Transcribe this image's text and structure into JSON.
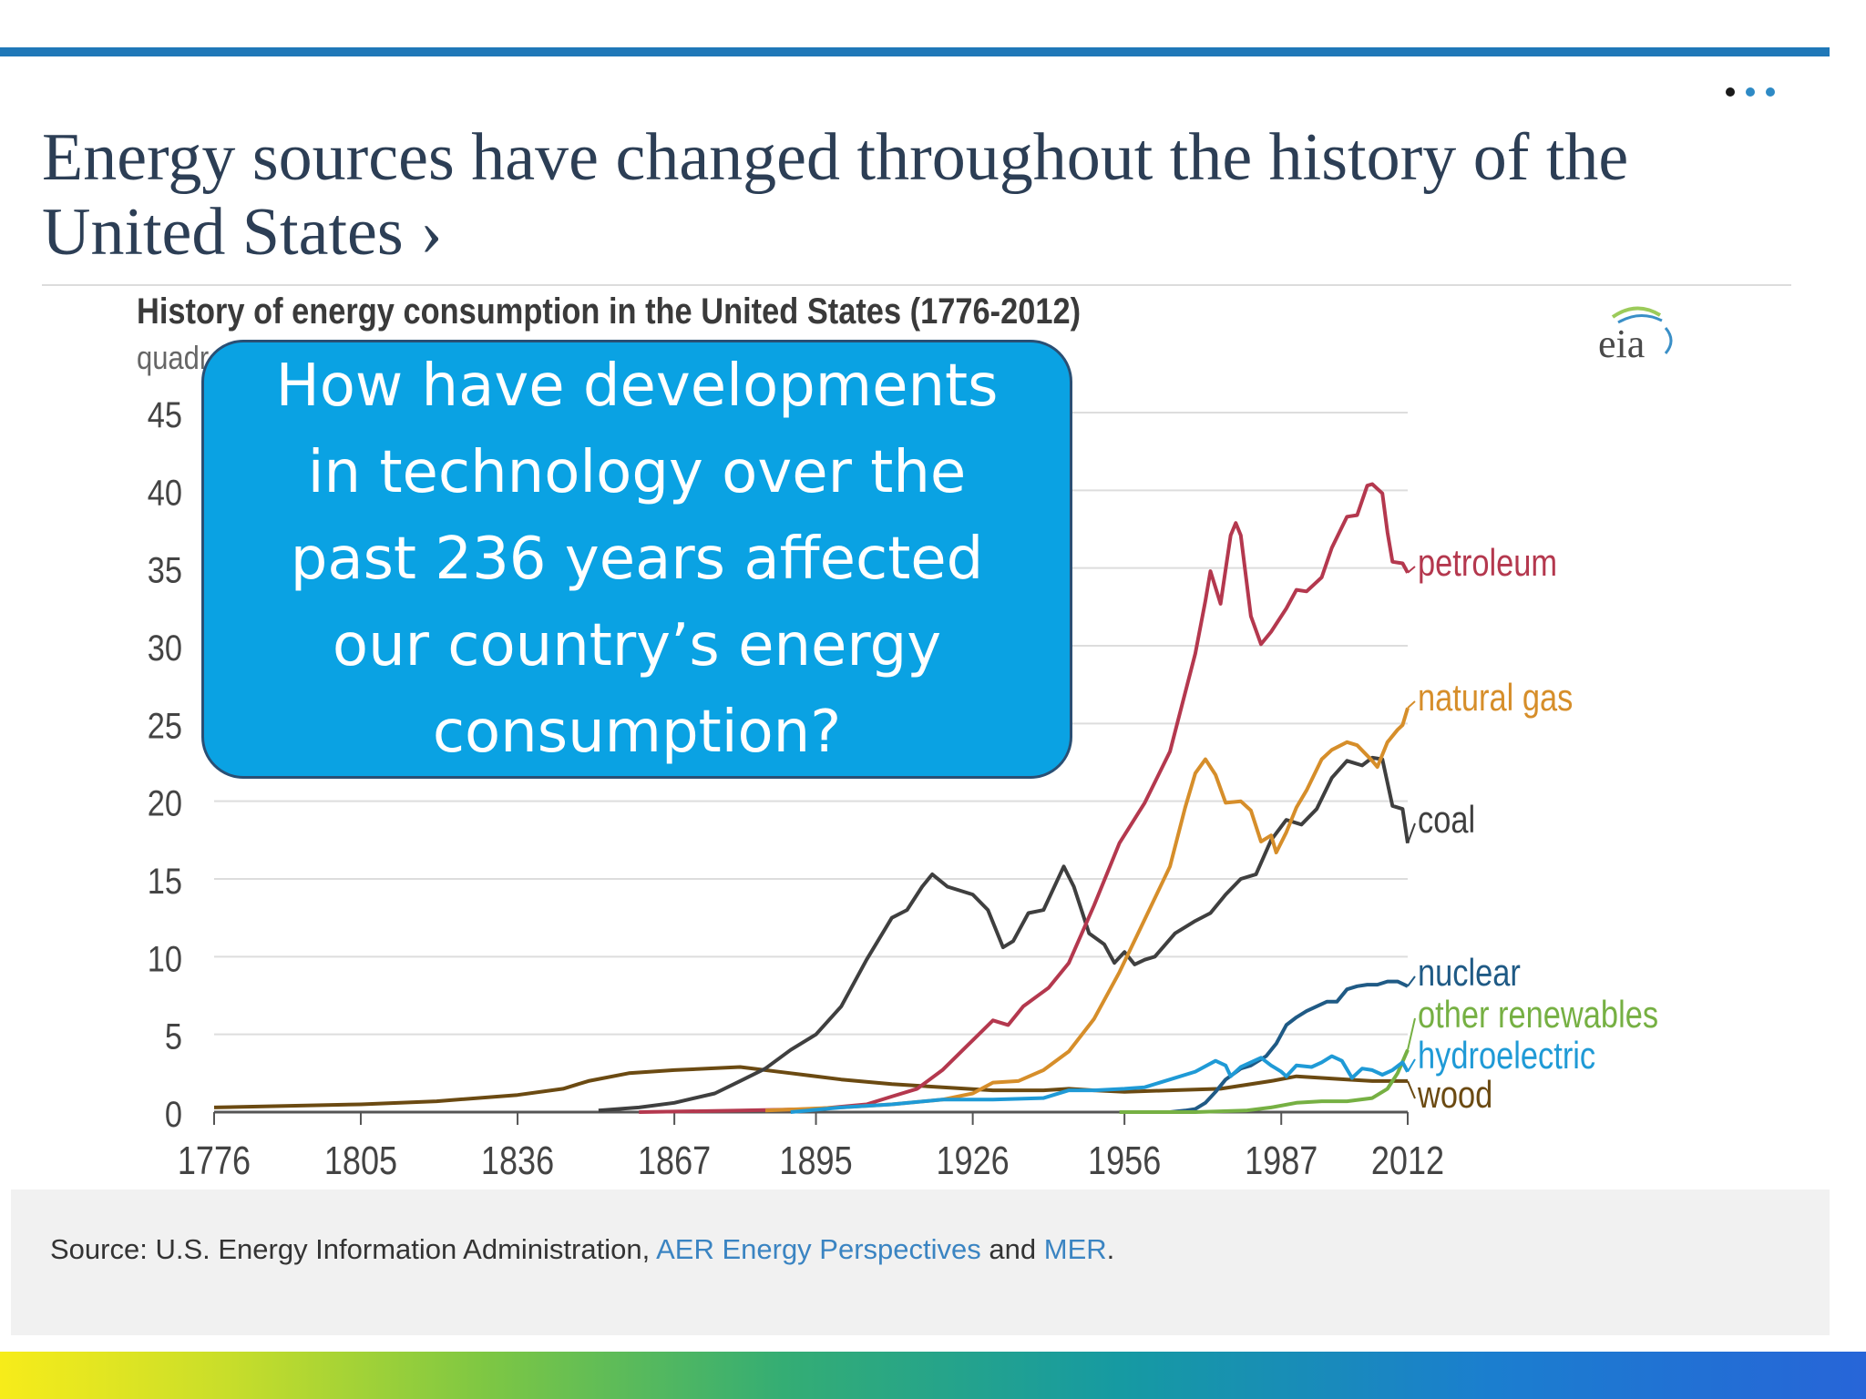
{
  "slide": {
    "heading": "Energy sources have changed throughout the history of the United States ›",
    "page_dots": 3
  },
  "callout": {
    "text": "How have developments in technology over the past 236 years affected our country’s energy consumption?"
  },
  "source": {
    "prefix": "Source: U.S. Energy Information Administration,",
    "link1": "AER Energy Perspectives",
    "and": "and",
    "link2": "MER",
    "end": "."
  },
  "logo": {
    "text": "eia"
  },
  "chart_data": {
    "type": "line",
    "title": "History of energy consumption in the United States (1776-2012)",
    "ylabel": "quadr",
    "xlim": [
      1776,
      2012
    ],
    "ylim": [
      0,
      45
    ],
    "x_ticks": [
      1776,
      1805,
      1836,
      1867,
      1895,
      1926,
      1956,
      1987,
      2012
    ],
    "y_ticks": [
      0,
      5,
      10,
      15,
      20,
      25,
      30,
      35,
      40,
      45
    ],
    "grid": true,
    "series": [
      {
        "name": "wood",
        "color": "#6b4a12",
        "points": [
          [
            1776,
            0.3
          ],
          [
            1790,
            0.4
          ],
          [
            1805,
            0.5
          ],
          [
            1820,
            0.7
          ],
          [
            1836,
            1.1
          ],
          [
            1845,
            1.5
          ],
          [
            1850,
            2.0
          ],
          [
            1858,
            2.5
          ],
          [
            1867,
            2.7
          ],
          [
            1880,
            2.9
          ],
          [
            1890,
            2.5
          ],
          [
            1900,
            2.1
          ],
          [
            1910,
            1.8
          ],
          [
            1920,
            1.6
          ],
          [
            1930,
            1.4
          ],
          [
            1940,
            1.4
          ],
          [
            1945,
            1.5
          ],
          [
            1950,
            1.4
          ],
          [
            1956,
            1.3
          ],
          [
            1965,
            1.4
          ],
          [
            1975,
            1.5
          ],
          [
            1985,
            2.0
          ],
          [
            1990,
            2.3
          ],
          [
            2000,
            2.1
          ],
          [
            2005,
            2.0
          ],
          [
            2012,
            2.0
          ]
        ]
      },
      {
        "name": "coal",
        "color": "#3f3f3f",
        "points": [
          [
            1852,
            0.1
          ],
          [
            1860,
            0.3
          ],
          [
            1867,
            0.6
          ],
          [
            1875,
            1.2
          ],
          [
            1880,
            2.0
          ],
          [
            1885,
            2.8
          ],
          [
            1890,
            4.0
          ],
          [
            1895,
            5.0
          ],
          [
            1900,
            6.8
          ],
          [
            1905,
            9.8
          ],
          [
            1910,
            12.5
          ],
          [
            1913,
            13.0
          ],
          [
            1916,
            14.5
          ],
          [
            1918,
            15.3
          ],
          [
            1921,
            14.5
          ],
          [
            1926,
            14.0
          ],
          [
            1929,
            13.0
          ],
          [
            1932,
            10.6
          ],
          [
            1934,
            11.0
          ],
          [
            1937,
            12.8
          ],
          [
            1940,
            13.0
          ],
          [
            1944,
            15.8
          ],
          [
            1946,
            14.5
          ],
          [
            1949,
            11.5
          ],
          [
            1952,
            10.8
          ],
          [
            1954,
            9.6
          ],
          [
            1956,
            10.3
          ],
          [
            1958,
            9.5
          ],
          [
            1960,
            9.8
          ],
          [
            1962,
            10.0
          ],
          [
            1966,
            11.5
          ],
          [
            1970,
            12.3
          ],
          [
            1973,
            12.8
          ],
          [
            1976,
            14.0
          ],
          [
            1979,
            15.0
          ],
          [
            1982,
            15.3
          ],
          [
            1985,
            17.5
          ],
          [
            1988,
            18.8
          ],
          [
            1991,
            18.5
          ],
          [
            1994,
            19.5
          ],
          [
            1997,
            21.5
          ],
          [
            2000,
            22.6
          ],
          [
            2003,
            22.3
          ],
          [
            2005,
            22.8
          ],
          [
            2007,
            22.7
          ],
          [
            2009,
            19.7
          ],
          [
            2011,
            19.5
          ],
          [
            2012,
            17.3
          ]
        ]
      },
      {
        "name": "petroleum",
        "color": "#b4384e",
        "points": [
          [
            1860,
            0.0
          ],
          [
            1880,
            0.1
          ],
          [
            1895,
            0.2
          ],
          [
            1905,
            0.5
          ],
          [
            1910,
            1.0
          ],
          [
            1915,
            1.5
          ],
          [
            1920,
            2.7
          ],
          [
            1925,
            4.3
          ],
          [
            1930,
            5.9
          ],
          [
            1933,
            5.6
          ],
          [
            1936,
            6.8
          ],
          [
            1941,
            8.0
          ],
          [
            1945,
            9.6
          ],
          [
            1950,
            13.3
          ],
          [
            1955,
            17.3
          ],
          [
            1960,
            19.9
          ],
          [
            1965,
            23.2
          ],
          [
            1970,
            29.5
          ],
          [
            1972,
            32.9
          ],
          [
            1973,
            34.8
          ],
          [
            1975,
            32.7
          ],
          [
            1977,
            37.1
          ],
          [
            1978,
            37.9
          ],
          [
            1979,
            37.1
          ],
          [
            1981,
            31.9
          ],
          [
            1983,
            30.1
          ],
          [
            1985,
            30.9
          ],
          [
            1988,
            32.4
          ],
          [
            1990,
            33.6
          ],
          [
            1992,
            33.5
          ],
          [
            1995,
            34.4
          ],
          [
            1997,
            36.3
          ],
          [
            2000,
            38.3
          ],
          [
            2002,
            38.4
          ],
          [
            2004,
            40.3
          ],
          [
            2005,
            40.4
          ],
          [
            2007,
            39.8
          ],
          [
            2008,
            37.3
          ],
          [
            2009,
            35.4
          ],
          [
            2011,
            35.3
          ],
          [
            2012,
            34.7
          ]
        ]
      },
      {
        "name": "natural gas",
        "color": "#d68e2a",
        "points": [
          [
            1885,
            0.1
          ],
          [
            1900,
            0.3
          ],
          [
            1910,
            0.5
          ],
          [
            1920,
            0.8
          ],
          [
            1926,
            1.2
          ],
          [
            1930,
            1.9
          ],
          [
            1935,
            2.0
          ],
          [
            1940,
            2.7
          ],
          [
            1945,
            3.9
          ],
          [
            1950,
            6.0
          ],
          [
            1955,
            9.0
          ],
          [
            1960,
            12.4
          ],
          [
            1965,
            15.8
          ],
          [
            1968,
            19.6
          ],
          [
            1970,
            21.8
          ],
          [
            1972,
            22.7
          ],
          [
            1974,
            21.7
          ],
          [
            1976,
            19.9
          ],
          [
            1979,
            20.0
          ],
          [
            1981,
            19.4
          ],
          [
            1983,
            17.4
          ],
          [
            1985,
            17.8
          ],
          [
            1986,
            16.7
          ],
          [
            1988,
            18.0
          ],
          [
            1990,
            19.6
          ],
          [
            1992,
            20.7
          ],
          [
            1995,
            22.7
          ],
          [
            1997,
            23.3
          ],
          [
            2000,
            23.8
          ],
          [
            2002,
            23.6
          ],
          [
            2005,
            22.6
          ],
          [
            2006,
            22.2
          ],
          [
            2008,
            23.8
          ],
          [
            2010,
            24.6
          ],
          [
            2011,
            24.9
          ],
          [
            2012,
            26.0
          ]
        ]
      },
      {
        "name": "nuclear",
        "color": "#1f5a85",
        "points": [
          [
            1957,
            0.0
          ],
          [
            1965,
            0.0
          ],
          [
            1968,
            0.1
          ],
          [
            1970,
            0.2
          ],
          [
            1972,
            0.6
          ],
          [
            1974,
            1.3
          ],
          [
            1976,
            2.1
          ],
          [
            1979,
            2.8
          ],
          [
            1981,
            3.0
          ],
          [
            1984,
            3.6
          ],
          [
            1986,
            4.4
          ],
          [
            1988,
            5.6
          ],
          [
            1990,
            6.1
          ],
          [
            1992,
            6.5
          ],
          [
            1994,
            6.8
          ],
          [
            1996,
            7.1
          ],
          [
            1998,
            7.1
          ],
          [
            2000,
            7.9
          ],
          [
            2002,
            8.1
          ],
          [
            2004,
            8.2
          ],
          [
            2006,
            8.2
          ],
          [
            2008,
            8.4
          ],
          [
            2010,
            8.4
          ],
          [
            2012,
            8.1
          ]
        ]
      },
      {
        "name": "other renewables",
        "color": "#76b043",
        "points": [
          [
            1955,
            0.0
          ],
          [
            1970,
            0.0
          ],
          [
            1980,
            0.1
          ],
          [
            1985,
            0.3
          ],
          [
            1990,
            0.6
          ],
          [
            1995,
            0.7
          ],
          [
            2000,
            0.7
          ],
          [
            2005,
            0.9
          ],
          [
            2008,
            1.5
          ],
          [
            2010,
            2.5
          ],
          [
            2012,
            4.0
          ]
        ]
      },
      {
        "name": "hydroelectric",
        "color": "#1f9ad6",
        "points": [
          [
            1890,
            0.0
          ],
          [
            1900,
            0.3
          ],
          [
            1910,
            0.5
          ],
          [
            1920,
            0.8
          ],
          [
            1930,
            0.8
          ],
          [
            1940,
            0.9
          ],
          [
            1945,
            1.4
          ],
          [
            1950,
            1.4
          ],
          [
            1956,
            1.5
          ],
          [
            1960,
            1.6
          ],
          [
            1965,
            2.1
          ],
          [
            1970,
            2.6
          ],
          [
            1974,
            3.3
          ],
          [
            1976,
            3.0
          ],
          [
            1977,
            2.3
          ],
          [
            1979,
            2.9
          ],
          [
            1983,
            3.5
          ],
          [
            1985,
            3.0
          ],
          [
            1987,
            2.6
          ],
          [
            1988,
            2.3
          ],
          [
            1990,
            3.0
          ],
          [
            1993,
            2.9
          ],
          [
            1995,
            3.2
          ],
          [
            1997,
            3.6
          ],
          [
            1999,
            3.3
          ],
          [
            2001,
            2.2
          ],
          [
            2003,
            2.8
          ],
          [
            2005,
            2.7
          ],
          [
            2007,
            2.4
          ],
          [
            2009,
            2.7
          ],
          [
            2011,
            3.2
          ],
          [
            2012,
            2.6
          ]
        ]
      }
    ]
  }
}
